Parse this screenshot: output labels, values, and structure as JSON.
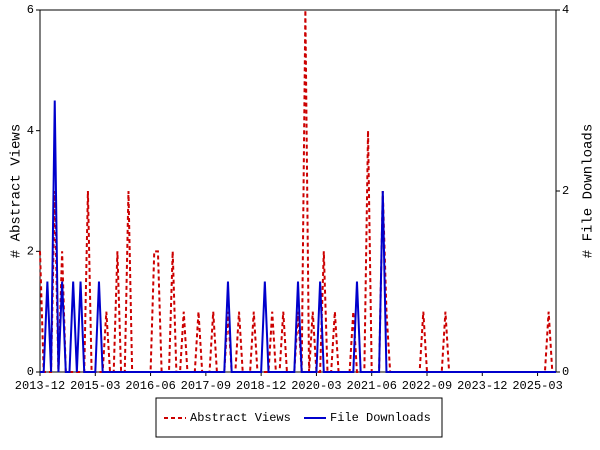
{
  "chart_data": {
    "type": "line",
    "categories": [
      "2013-12",
      null,
      null,
      null,
      null,
      null,
      null,
      null,
      null,
      null,
      null,
      null,
      null,
      null,
      null,
      "2015-03",
      null,
      null,
      null,
      null,
      null,
      null,
      null,
      null,
      null,
      null,
      null,
      null,
      null,
      null,
      "2016-06",
      null,
      null,
      null,
      null,
      null,
      null,
      null,
      null,
      null,
      null,
      null,
      null,
      null,
      null,
      "2017-09",
      null,
      null,
      null,
      null,
      null,
      null,
      null,
      null,
      null,
      null,
      null,
      null,
      null,
      null,
      "2018-12",
      null,
      null,
      null,
      null,
      null,
      null,
      null,
      null,
      null,
      null,
      null,
      null,
      null,
      null,
      "2020-03",
      null,
      null,
      null,
      null,
      null,
      null,
      null,
      null,
      null,
      null,
      null,
      null,
      null,
      null,
      "2021-06",
      null,
      null,
      null,
      null,
      null,
      null,
      null,
      null,
      null,
      null,
      null,
      null,
      null,
      null,
      "2022-09",
      null,
      null,
      null,
      null,
      null,
      null,
      null,
      null,
      null,
      null,
      null,
      null,
      null,
      null,
      "2023-12",
      null,
      null,
      null,
      null,
      null,
      null,
      null,
      null,
      null,
      null,
      null,
      null,
      null,
      null,
      "2025-03",
      null,
      null,
      null,
      null,
      null
    ],
    "series": [
      {
        "name": "Abstract Views",
        "color": "#cc0000",
        "dash": true,
        "values": [
          2,
          0,
          0,
          0,
          3,
          0,
          2,
          0,
          0,
          0,
          0,
          0,
          0,
          3,
          0,
          0,
          0,
          0,
          1,
          0,
          0,
          2,
          0,
          0,
          3,
          0,
          0,
          0,
          0,
          0,
          0,
          2,
          2,
          0,
          0,
          0,
          2,
          0,
          0,
          1,
          0,
          0,
          0,
          1,
          0,
          0,
          0,
          1,
          0,
          0,
          0,
          1,
          0,
          0,
          1,
          0,
          0,
          0,
          1,
          0,
          0,
          0,
          0,
          1,
          0,
          0,
          1,
          0,
          0,
          0,
          1,
          0,
          6,
          0,
          1,
          0,
          0,
          2,
          0,
          0,
          1,
          0,
          0,
          0,
          0,
          1,
          0,
          0,
          0,
          4,
          0,
          0,
          0,
          3,
          1,
          0,
          0,
          0,
          0,
          0,
          0,
          0,
          0,
          0,
          1,
          0,
          0,
          0,
          0,
          0,
          1,
          0,
          0,
          0,
          0,
          0,
          0,
          0,
          0,
          0,
          0,
          0,
          0,
          0,
          0,
          0,
          0,
          0,
          0,
          0,
          0,
          0,
          0,
          0,
          0,
          0,
          0,
          0,
          1,
          0,
          0
        ]
      },
      {
        "name": "File Downloads",
        "color": "#0000cc",
        "dash": false,
        "axis": "y2",
        "values": [
          0,
          0,
          1,
          0,
          3,
          0,
          1,
          0,
          0,
          1,
          0,
          1,
          0,
          0,
          0,
          0,
          1,
          0,
          0,
          0,
          0,
          0,
          0,
          0,
          0,
          0,
          0,
          0,
          0,
          0,
          0,
          0,
          0,
          0,
          0,
          0,
          0,
          0,
          0,
          0,
          0,
          0,
          0,
          0,
          0,
          0,
          0,
          0,
          0,
          0,
          0,
          1,
          0,
          0,
          0,
          0,
          0,
          0,
          0,
          0,
          0,
          1,
          0,
          0,
          0,
          0,
          0,
          0,
          0,
          0,
          1,
          0,
          0,
          0,
          0,
          0,
          1,
          0,
          0,
          0,
          0,
          0,
          0,
          0,
          0,
          0,
          1,
          0,
          0,
          0,
          0,
          0,
          0,
          2,
          0,
          0,
          0,
          0,
          0,
          0,
          0,
          0,
          0,
          0,
          0,
          0,
          0,
          0,
          0,
          0,
          0,
          0,
          0,
          0,
          0,
          0,
          0,
          0,
          0,
          0,
          0,
          0,
          0,
          0,
          0,
          0,
          0,
          0,
          0,
          0,
          0,
          0,
          0,
          0,
          0,
          0,
          0,
          0,
          0,
          0,
          0
        ]
      }
    ],
    "y_label": "# Abstract Views",
    "y2_label": "# File Downloads",
    "ylim": [
      0,
      6
    ],
    "yticks": [
      0,
      2,
      4,
      6
    ],
    "y2lim": [
      0,
      4
    ],
    "y2ticks": [
      0,
      2,
      4
    ],
    "legend": "bottom"
  }
}
